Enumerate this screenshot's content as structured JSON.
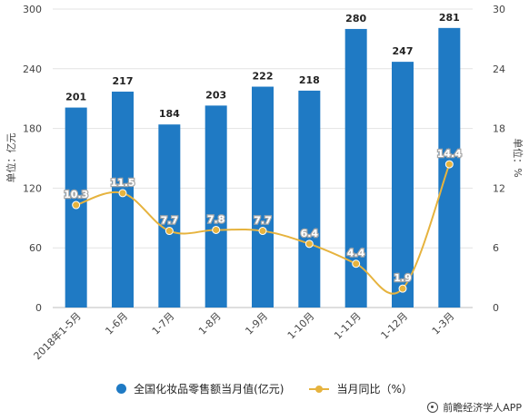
{
  "colors": {
    "bar": "#1f7ac4",
    "line": "#e6b33e",
    "grid": "#e3e3e3"
  },
  "chart_data": {
    "type": "bar",
    "categories": [
      "2018年1-5月",
      "1-6月",
      "1-7月",
      "1-8月",
      "1-9月",
      "1-10月",
      "1-11月",
      "1-12月",
      "1-3月"
    ],
    "series": [
      {
        "name": "全国化妆品零售额当月值(亿元)",
        "type": "bar",
        "axis": "left",
        "values": [
          201,
          217,
          184,
          203,
          222,
          218,
          280,
          247,
          281
        ]
      },
      {
        "name": "当月同比（%）",
        "type": "line",
        "axis": "right",
        "values": [
          10.3,
          11.5,
          7.7,
          7.8,
          7.7,
          6.4,
          4.4,
          1.9,
          14.4
        ]
      }
    ],
    "bar_labels": [
      "201",
      "217",
      "184",
      "203",
      "222",
      "218",
      "280",
      "247",
      "281"
    ],
    "line_labels": [
      "10.3",
      "11.5",
      "7.7",
      "7.8",
      "7.7",
      "6.4",
      "4.4",
      "1.9",
      "14.4"
    ],
    "ylabel_left": "单位：亿元",
    "ylabel_right": "单位：%",
    "ylim_left": [
      0,
      300
    ],
    "yticks_left": [
      "0",
      "60",
      "120",
      "180",
      "240",
      "300"
    ],
    "ylim_right": [
      0,
      30
    ],
    "yticks_right": [
      "0",
      "6",
      "12",
      "18",
      "24",
      "30"
    ],
    "grid": true,
    "legend_position": "bottom"
  },
  "legend": {
    "bar_label": "全国化妆品零售额当月值(亿元)",
    "line_label": "当月同比（%）"
  },
  "source": "前瞻经济学人APP"
}
